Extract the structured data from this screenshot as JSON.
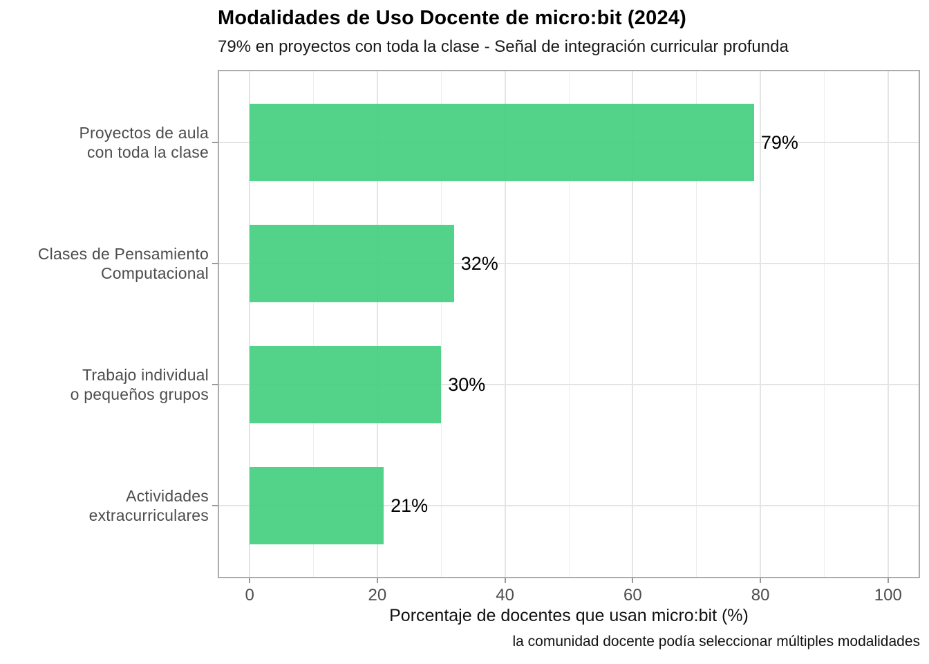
{
  "header": {
    "title": "Modalidades de Uso Docente de micro:bit (2024)",
    "subtitle": "79% en proyectos con toda la clase - Señal de integración curricular profunda"
  },
  "footer": {
    "caption": "la comunidad docente podía seleccionar múltiples modalidades"
  },
  "chart_data": {
    "type": "bar",
    "orientation": "horizontal",
    "title": "Modalidades de Uso Docente de micro:bit (2024)",
    "subtitle": "79% en proyectos con toda la clase - Señal de integración curricular profunda",
    "caption": "la comunidad docente podía seleccionar múltiples modalidades",
    "categories": [
      "Proyectos de aula\ncon toda la clase",
      "Clases de Pensamiento\nComputacional",
      "Trabajo individual\no pequeños grupos",
      "Actividades\nextracurriculares"
    ],
    "values": [
      79,
      32,
      30,
      21
    ],
    "value_labels": [
      "79%",
      "32%",
      "30%",
      "21%"
    ],
    "xlabel": "Porcentaje de docentes que usan micro:bit (%)",
    "ylabel": "",
    "xlim": [
      -5,
      105
    ],
    "x_major_ticks": [
      0,
      20,
      40,
      60,
      80,
      100
    ],
    "x_minor_gridlines": [
      10,
      30,
      50,
      70,
      90
    ],
    "grid": true,
    "legend": false,
    "colors": {
      "bar_fill": "rgba(64,206,125,0.9)",
      "bar_hex_perceived": "#55d38b",
      "grid_major": "#e4e4e4",
      "grid_minor": "#ededed",
      "panel_border": "#ababab",
      "tick_mark": "#999999",
      "axis_text": "#4d4d4d",
      "label_text": "#000000"
    }
  }
}
